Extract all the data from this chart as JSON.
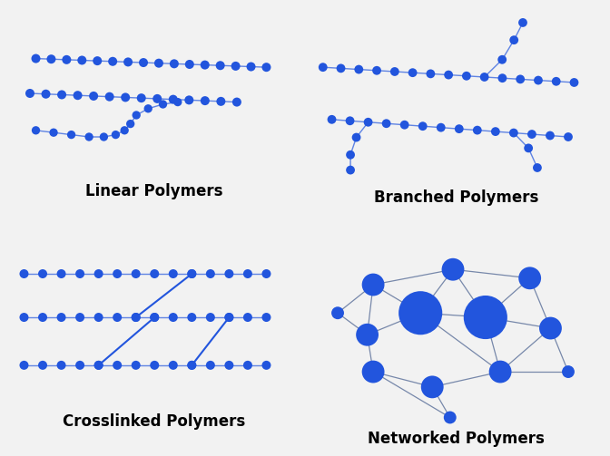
{
  "background_color": "#f2f2f2",
  "node_color": "#2255dd",
  "edge_color": "#3366cc",
  "link_color": "#5577bb",
  "label_color": "#000000",
  "label_fontsize": 12,
  "label_fontweight": "bold",
  "labels": {
    "linear": "Linear Polymers",
    "branched": "Branched Polymers",
    "crosslinked": "Crosslinked Polymers",
    "networked": "Networked Polymers"
  }
}
